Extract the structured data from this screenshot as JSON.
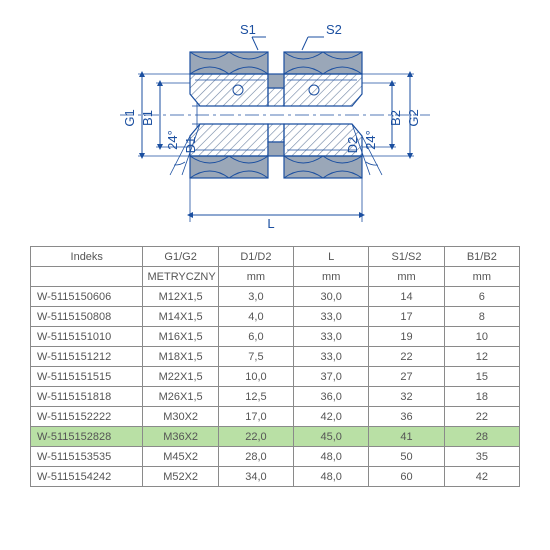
{
  "diagram": {
    "stroke_color": "#1b4fa0",
    "fill_light": "#cdd6df",
    "fill_mid": "#9aa7b8",
    "fill_dark": "#6f7d90",
    "hatch_color": "#6a80a0",
    "bg": "#ffffff",
    "labels": {
      "S1": "S1",
      "S2": "S2",
      "G1": "G1",
      "G2": "G2",
      "B1": "B1",
      "B2": "B2",
      "D1": "D1",
      "D2": "D2",
      "L": "L",
      "angL": "24°",
      "angR": "24°"
    }
  },
  "table": {
    "headers": [
      "Indeks",
      "G1/G2",
      "D1/D2",
      "L",
      "S1/S2",
      "B1/B2"
    ],
    "units": [
      "",
      "METRYCZNY",
      "mm",
      "mm",
      "mm",
      "mm"
    ],
    "highlight_index": 7,
    "highlight_color": "#b9e0a5",
    "rows": [
      [
        "W-5115150606",
        "M12X1,5",
        "3,0",
        "30,0",
        "14",
        "6"
      ],
      [
        "W-5115150808",
        "M14X1,5",
        "4,0",
        "33,0",
        "17",
        "8"
      ],
      [
        "W-5115151010",
        "M16X1,5",
        "6,0",
        "33,0",
        "19",
        "10"
      ],
      [
        "W-5115151212",
        "M18X1,5",
        "7,5",
        "33,0",
        "22",
        "12"
      ],
      [
        "W-5115151515",
        "M22X1,5",
        "10,0",
        "37,0",
        "27",
        "15"
      ],
      [
        "W-5115151818",
        "M26X1,5",
        "12,5",
        "36,0",
        "32",
        "18"
      ],
      [
        "W-5115152222",
        "M30X2",
        "17,0",
        "42,0",
        "36",
        "22"
      ],
      [
        "W-5115152828",
        "M36X2",
        "22,0",
        "45,0",
        "41",
        "28"
      ],
      [
        "W-5115153535",
        "M45X2",
        "28,0",
        "48,0",
        "50",
        "35"
      ],
      [
        "W-5115154242",
        "M52X2",
        "34,0",
        "48,0",
        "60",
        "42"
      ]
    ]
  }
}
